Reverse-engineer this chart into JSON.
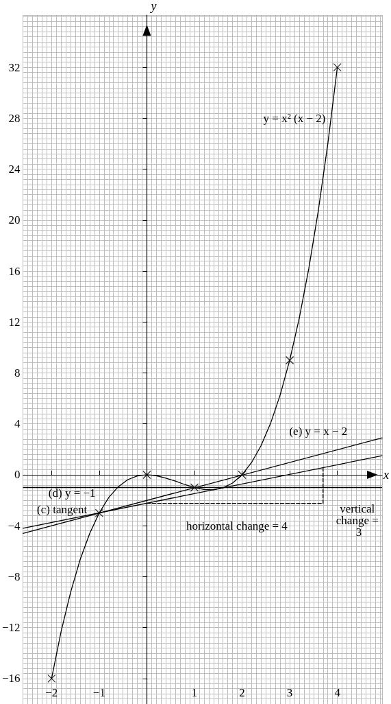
{
  "chart_data": {
    "type": "line",
    "xlabel": "x",
    "ylabel": "y",
    "xlim": [
      -2.6,
      4.94
    ],
    "ylim": [
      -18,
      36.1
    ],
    "xticks": [
      {
        "value": -2,
        "label": "−2"
      },
      {
        "value": -1,
        "label": "−1"
      },
      1,
      2,
      3,
      4
    ],
    "yticks": [
      {
        "value": -16,
        "label": "−16"
      },
      {
        "value": -12,
        "label": "−12"
      },
      {
        "value": -8,
        "label": "−8"
      },
      {
        "value": -4,
        "label": "−4"
      },
      0,
      4,
      8,
      12,
      16,
      20,
      24,
      28,
      32
    ],
    "grid": true,
    "series": [
      {
        "color": "#000000",
        "marker": "none",
        "line_style": "solid",
        "x": [
          -2,
          -1.8,
          -1.6,
          -1.4,
          -1.2,
          -1,
          -0.8,
          -0.6,
          -0.4,
          -0.2,
          0,
          0.2,
          0.4,
          0.6,
          0.8,
          1,
          1.2,
          1.4,
          1.6,
          1.8,
          2,
          2.2,
          2.4,
          2.6,
          2.8,
          3,
          3.2,
          3.4,
          3.6,
          3.8,
          4
        ],
        "values": [
          -16,
          -12.31,
          -9.22,
          -6.66,
          -4.61,
          -3,
          -1.79,
          -0.94,
          -0.38,
          -0.09,
          0,
          -0.07,
          -0.26,
          -0.5,
          -0.77,
          -1,
          -1.15,
          -1.18,
          -1.02,
          -0.65,
          0,
          0.97,
          2.3,
          4.06,
          6.27,
          9,
          12.29,
          16.18,
          20.74,
          25.99,
          32
        ]
      },
      {
        "type": "scatter",
        "color": "#000000",
        "marker": "cross",
        "x": [
          -2,
          -1,
          0,
          1,
          2,
          3,
          4
        ],
        "values": [
          -16,
          -3,
          0,
          -1,
          0,
          9,
          32
        ]
      },
      {
        "color": "#000000",
        "marker": "none",
        "line_style": "solid",
        "x": [
          -2.6,
          4.94
        ],
        "values": [
          -4.2,
          1.5
        ]
      },
      {
        "color": "#000000",
        "marker": "none",
        "line_style": "solid",
        "x": [
          -2.6,
          4.94
        ],
        "values": [
          -4.6,
          2.9
        ]
      },
      {
        "color": "#000000",
        "marker": "none",
        "line_style": "dashed",
        "x": [
          0,
          3.7,
          3.7
        ],
        "values": [
          -2.25,
          -2.25,
          0.5
        ]
      }
    ],
    "ref_lines": [
      {
        "axis": "y",
        "value": -1,
        "color": "#000000",
        "line_style": "solid"
      }
    ],
    "annotations": [
      "y = x² (x − 2)",
      "(e) y = x − 2",
      "(d) y = −1",
      "(c) tangent",
      "horizontal change = 4",
      "vertical change = 3"
    ]
  }
}
